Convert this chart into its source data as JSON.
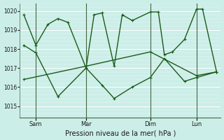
{
  "bg_color": "#cceee8",
  "line_color": "#1a5c1a",
  "grid_color_major": "#ffffff",
  "grid_color_minor": "#ddeee8",
  "xlabel": "Pression niveau de la mer( hPa )",
  "ylim": [
    1014.4,
    1020.4
  ],
  "yticks": [
    1015,
    1016,
    1017,
    1018,
    1019,
    1020
  ],
  "xtick_labels": [
    "Sam",
    "Mar",
    "Dim",
    "Lun"
  ],
  "vline_x": [
    0.08,
    0.33,
    0.65,
    0.88
  ],
  "series1_x": [
    0.02,
    0.08,
    0.14,
    0.19,
    0.24,
    0.33,
    0.37,
    0.41,
    0.47,
    0.51,
    0.56,
    0.65,
    0.69,
    0.72,
    0.76,
    0.82,
    0.88,
    0.91,
    0.98
  ],
  "series1_y": [
    1019.8,
    1018.2,
    1019.3,
    1019.6,
    1019.4,
    1017.0,
    1019.8,
    1019.9,
    1017.1,
    1019.8,
    1019.5,
    1019.95,
    1019.95,
    1017.7,
    1017.85,
    1018.5,
    1020.1,
    1020.1,
    1016.8
  ],
  "series2_x": [
    0.02,
    0.08,
    0.19,
    0.33,
    0.41,
    0.47,
    0.56,
    0.65,
    0.72,
    0.82,
    0.88,
    0.98
  ],
  "series2_y": [
    1018.2,
    1017.8,
    1015.5,
    1017.0,
    1016.1,
    1015.4,
    1016.0,
    1016.5,
    1017.5,
    1016.3,
    1016.5,
    1016.8
  ],
  "series3_x": [
    0.02,
    0.33,
    0.65,
    0.88,
    0.98
  ],
  "series3_y": [
    1016.4,
    1017.1,
    1017.85,
    1016.6,
    1016.8
  ],
  "marker": "+"
}
